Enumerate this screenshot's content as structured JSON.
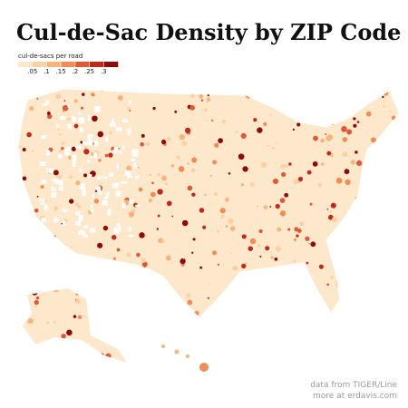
{
  "title": "Cul-de-Sac Density by ZIP Code",
  "legend": {
    "title": "cul-de-sacs per road",
    "range": [
      0,
      0.35
    ],
    "colors": [
      "#fde8cc",
      "#fbd2a6",
      "#f7b47c",
      "#ee8d58",
      "#dc5a38",
      "#c02a1c",
      "#8c0b0b"
    ],
    "ticks": [
      {
        "value": 0.05,
        "label": ".05"
      },
      {
        "value": 0.1,
        "label": ".1"
      },
      {
        "value": 0.15,
        "label": ".15"
      },
      {
        "value": 0.2,
        "label": ".2"
      },
      {
        "value": 0.25,
        "label": ".25"
      },
      {
        "value": 0.3,
        "label": ".3"
      }
    ]
  },
  "credits": [
    "data from TIGER/Line",
    "more at erdavis.com"
  ]
}
